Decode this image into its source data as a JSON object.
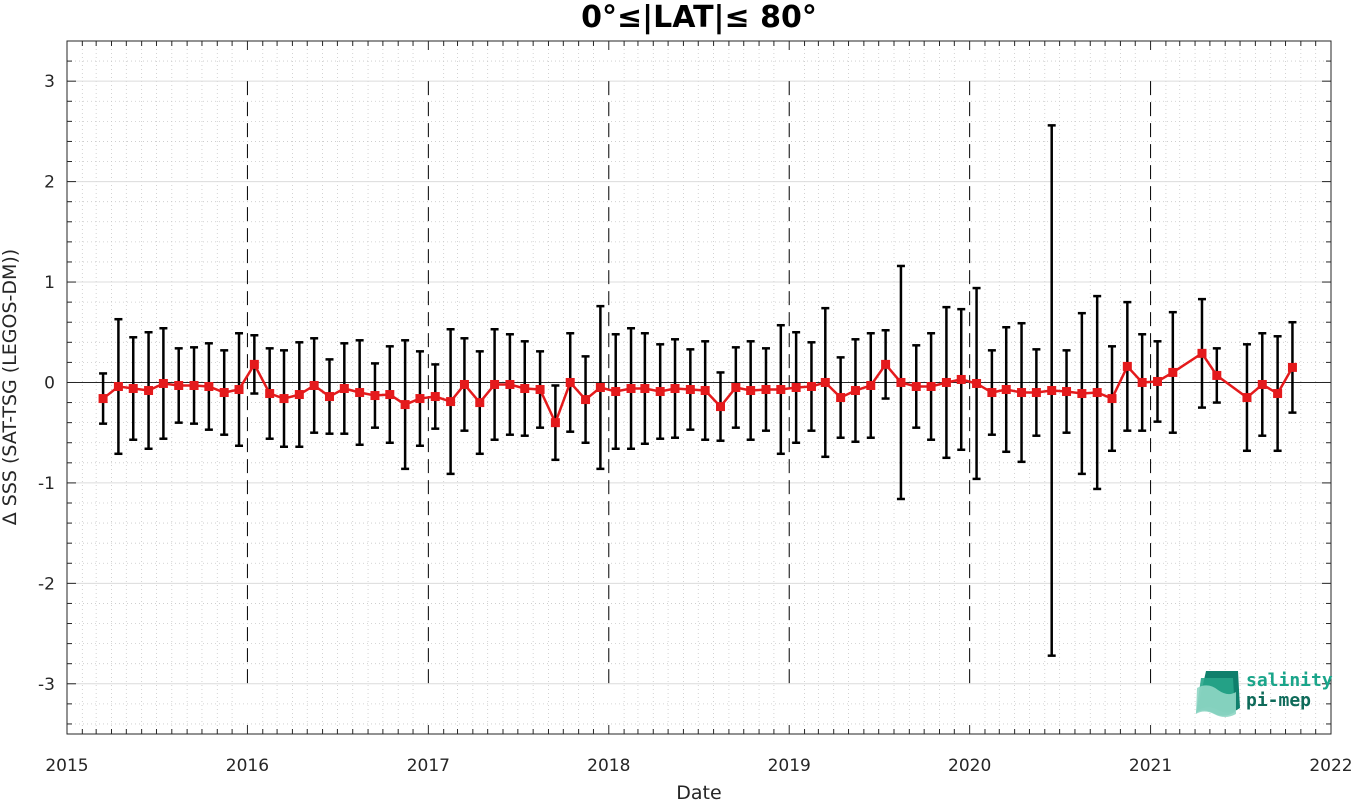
{
  "chart_data": {
    "type": "line",
    "title": "0°≤|LAT|≤ 80°",
    "xlabel": "Date",
    "ylabel": "Δ SSS (SAT-TSG (LEGOS-DM))",
    "xlim": [
      "2015-01-01",
      "2022-01-01"
    ],
    "ylim": [
      -3.5,
      3.4
    ],
    "x_ticks": [
      "2015",
      "2016",
      "2017",
      "2018",
      "2019",
      "2020",
      "2021",
      "2022"
    ],
    "y_ticks": [
      -3,
      -2,
      -1,
      0,
      1,
      2,
      3
    ],
    "grid": true,
    "zero_line": true,
    "year_dividers": "dashed vertical lines at each January",
    "series": [
      {
        "style": "red line with square markers and black error bars",
        "color": "#e41a1c",
        "errorbar_color": "#000000",
        "points": [
          {
            "date": "2015-03-15",
            "y": -0.16,
            "err": 0.25
          },
          {
            "date": "2015-04-15",
            "y": -0.04,
            "err": 0.67
          },
          {
            "date": "2015-05-15",
            "y": -0.06,
            "err": 0.51
          },
          {
            "date": "2015-06-15",
            "y": -0.08,
            "err": 0.58
          },
          {
            "date": "2015-07-15",
            "y": -0.01,
            "err": 0.55
          },
          {
            "date": "2015-08-15",
            "y": -0.03,
            "err": 0.37
          },
          {
            "date": "2015-09-15",
            "y": -0.03,
            "err": 0.38
          },
          {
            "date": "2015-10-15",
            "y": -0.04,
            "err": 0.43
          },
          {
            "date": "2015-11-15",
            "y": -0.1,
            "err": 0.42
          },
          {
            "date": "2015-12-15",
            "y": -0.07,
            "err": 0.56
          },
          {
            "date": "2016-01-15",
            "y": 0.18,
            "err": 0.29
          },
          {
            "date": "2016-02-15",
            "y": -0.11,
            "err": 0.45
          },
          {
            "date": "2016-03-15",
            "y": -0.16,
            "err": 0.48
          },
          {
            "date": "2016-04-15",
            "y": -0.12,
            "err": 0.52
          },
          {
            "date": "2016-05-15",
            "y": -0.03,
            "err": 0.47
          },
          {
            "date": "2016-06-15",
            "y": -0.14,
            "err": 0.37
          },
          {
            "date": "2016-07-15",
            "y": -0.06,
            "err": 0.45
          },
          {
            "date": "2016-08-15",
            "y": -0.1,
            "err": 0.52
          },
          {
            "date": "2016-09-15",
            "y": -0.13,
            "err": 0.32
          },
          {
            "date": "2016-10-15",
            "y": -0.12,
            "err": 0.48
          },
          {
            "date": "2016-11-15",
            "y": -0.22,
            "err": 0.64
          },
          {
            "date": "2016-12-15",
            "y": -0.16,
            "err": 0.47
          },
          {
            "date": "2017-01-15",
            "y": -0.14,
            "err": 0.32
          },
          {
            "date": "2017-02-15",
            "y": -0.19,
            "err": 0.72
          },
          {
            "date": "2017-03-15",
            "y": -0.02,
            "err": 0.46
          },
          {
            "date": "2017-04-15",
            "y": -0.2,
            "err": 0.51
          },
          {
            "date": "2017-05-15",
            "y": -0.02,
            "err": 0.55
          },
          {
            "date": "2017-06-15",
            "y": -0.02,
            "err": 0.5
          },
          {
            "date": "2017-07-15",
            "y": -0.06,
            "err": 0.47
          },
          {
            "date": "2017-08-15",
            "y": -0.07,
            "err": 0.38
          },
          {
            "date": "2017-09-15",
            "y": -0.4,
            "err": 0.37
          },
          {
            "date": "2017-10-15",
            "y": 0.0,
            "err": 0.49
          },
          {
            "date": "2017-11-15",
            "y": -0.17,
            "err": 0.43
          },
          {
            "date": "2017-12-15",
            "y": -0.05,
            "err": 0.81
          },
          {
            "date": "2018-01-15",
            "y": -0.09,
            "err": 0.57
          },
          {
            "date": "2018-02-15",
            "y": -0.06,
            "err": 0.6
          },
          {
            "date": "2018-03-15",
            "y": -0.06,
            "err": 0.55
          },
          {
            "date": "2018-04-15",
            "y": -0.09,
            "err": 0.47
          },
          {
            "date": "2018-05-15",
            "y": -0.06,
            "err": 0.49
          },
          {
            "date": "2018-06-15",
            "y": -0.07,
            "err": 0.4
          },
          {
            "date": "2018-07-15",
            "y": -0.08,
            "err": 0.49
          },
          {
            "date": "2018-08-15",
            "y": -0.24,
            "err": 0.34
          },
          {
            "date": "2018-09-15",
            "y": -0.05,
            "err": 0.4
          },
          {
            "date": "2018-10-15",
            "y": -0.08,
            "err": 0.49
          },
          {
            "date": "2018-11-15",
            "y": -0.07,
            "err": 0.41
          },
          {
            "date": "2018-12-15",
            "y": -0.07,
            "err": 0.64
          },
          {
            "date": "2019-01-15",
            "y": -0.05,
            "err": 0.55
          },
          {
            "date": "2019-02-15",
            "y": -0.04,
            "err": 0.44
          },
          {
            "date": "2019-03-15",
            "y": 0.0,
            "err": 0.74
          },
          {
            "date": "2019-04-15",
            "y": -0.15,
            "err": 0.4
          },
          {
            "date": "2019-05-15",
            "y": -0.08,
            "err": 0.51
          },
          {
            "date": "2019-06-15",
            "y": -0.03,
            "err": 0.52
          },
          {
            "date": "2019-07-15",
            "y": 0.18,
            "err": 0.34
          },
          {
            "date": "2019-08-15",
            "y": 0.0,
            "err": 1.16
          },
          {
            "date": "2019-09-15",
            "y": -0.04,
            "err": 0.41
          },
          {
            "date": "2019-10-15",
            "y": -0.04,
            "err": 0.53
          },
          {
            "date": "2019-11-15",
            "y": 0.0,
            "err": 0.75
          },
          {
            "date": "2019-12-15",
            "y": 0.03,
            "err": 0.7
          },
          {
            "date": "2020-01-15",
            "y": -0.01,
            "err": 0.95
          },
          {
            "date": "2020-02-15",
            "y": -0.1,
            "err": 0.42
          },
          {
            "date": "2020-03-15",
            "y": -0.07,
            "err": 0.62
          },
          {
            "date": "2020-04-15",
            "y": -0.1,
            "err": 0.69
          },
          {
            "date": "2020-05-15",
            "y": -0.1,
            "err": 0.43
          },
          {
            "date": "2020-06-15",
            "y": -0.08,
            "err": 2.64
          },
          {
            "date": "2020-07-15",
            "y": -0.09,
            "err": 0.41
          },
          {
            "date": "2020-08-15",
            "y": -0.11,
            "err": 0.8
          },
          {
            "date": "2020-09-15",
            "y": -0.1,
            "err": 0.96
          },
          {
            "date": "2020-10-15",
            "y": -0.16,
            "err": 0.52
          },
          {
            "date": "2020-11-15",
            "y": 0.16,
            "err": 0.64
          },
          {
            "date": "2020-12-15",
            "y": 0.0,
            "err": 0.48
          },
          {
            "date": "2021-01-15",
            "y": 0.01,
            "err": 0.4
          },
          {
            "date": "2021-02-15",
            "y": 0.1,
            "err": 0.6
          },
          {
            "date": "2021-04-15",
            "y": 0.29,
            "err": 0.54
          },
          {
            "date": "2021-05-15",
            "y": 0.07,
            "err": 0.27
          },
          {
            "date": "2021-07-15",
            "y": -0.15,
            "err": 0.53
          },
          {
            "date": "2021-08-15",
            "y": -0.02,
            "err": 0.51
          },
          {
            "date": "2021-09-15",
            "y": -0.11,
            "err": 0.57
          },
          {
            "date": "2021-10-15",
            "y": 0.15,
            "err": 0.45
          }
        ]
      }
    ]
  },
  "logo": {
    "line1": "salinity",
    "line2": "pi-mep",
    "color1": "#1aa58a",
    "color2": "#0f6b5a"
  }
}
